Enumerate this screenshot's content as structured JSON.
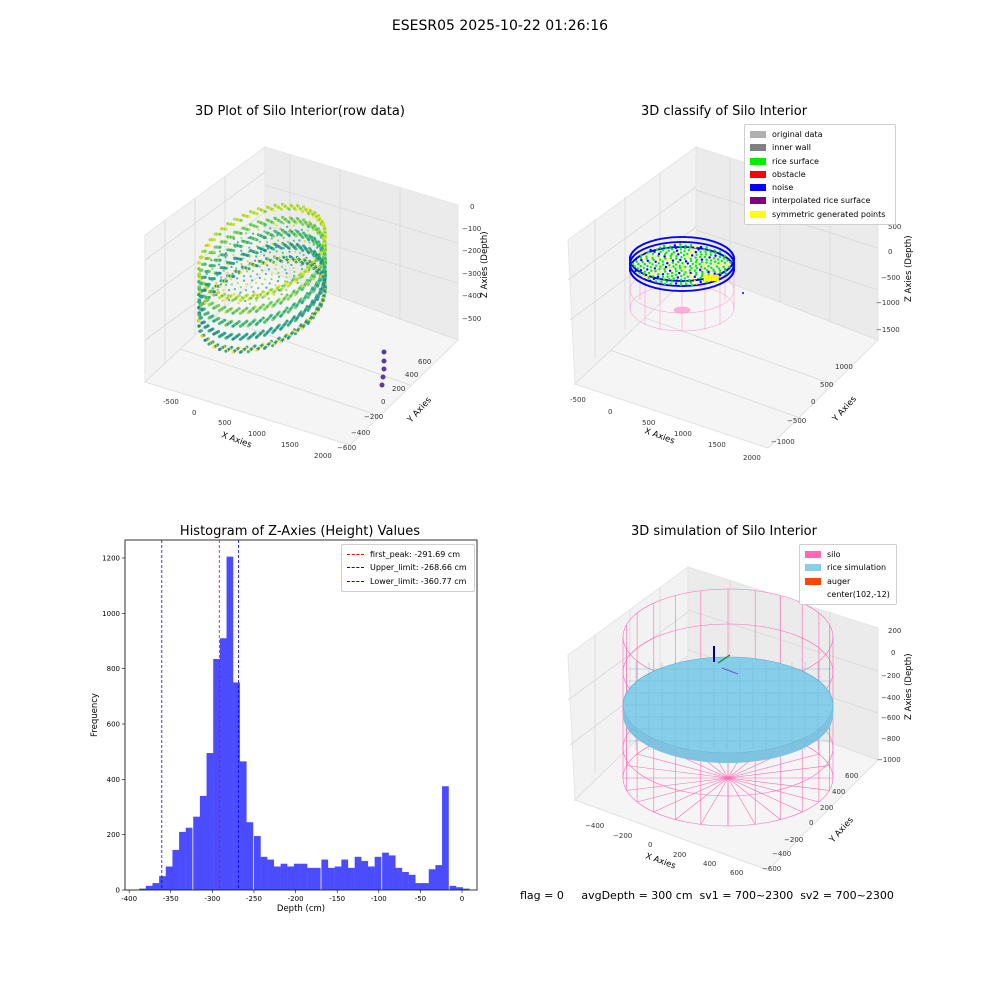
{
  "suptitle": "ESESR05 2025-10-22 01:26:16",
  "panels": {
    "raw": {
      "title": "3D Plot of Silo Interior(row data)",
      "xlabel": "X Axies",
      "ylabel": "Y Axies",
      "zlabel": "Z Axies (Depth)",
      "xticks": [
        "-500",
        "0",
        "500",
        "1000",
        "1500",
        "2000"
      ],
      "yticks": [
        "600",
        "400",
        "200",
        "0",
        "−200",
        "−400",
        "−600"
      ],
      "zticks": [
        "0",
        "−100",
        "−200",
        "−300",
        "−400",
        "−500"
      ]
    },
    "classify": {
      "title": "3D classify of Silo Interior",
      "xlabel": "X Axies",
      "ylabel": "Y Axies",
      "zlabel": "Z Axies (Depth)",
      "xticks": [
        "-500",
        "0",
        "500",
        "1000",
        "1500",
        "2000"
      ],
      "yticks": [
        "1000",
        "500",
        "0",
        "−500",
        "−1000"
      ],
      "zticks": [
        "500",
        "0",
        "−500",
        "−1000",
        "−1500"
      ],
      "legend": [
        {
          "label": "original data",
          "color": "#b0b0b0"
        },
        {
          "label": "inner wall",
          "color": "#808080"
        },
        {
          "label": "rice surface",
          "color": "#00ee00"
        },
        {
          "label": "obstacle",
          "color": "#ff0000"
        },
        {
          "label": "noise",
          "color": "#0000ff"
        },
        {
          "label": "interpolated rice surface",
          "color": "#800080"
        },
        {
          "label": "symmetric generated points",
          "color": "#ffff00"
        }
      ]
    },
    "sim": {
      "title": "3D simulation of Silo Interior",
      "xlabel": "X Axies",
      "ylabel": "Y Axies",
      "zlabel": "Z Axies (Depth)",
      "xticks": [
        "−400",
        "−200",
        "0",
        "200",
        "400",
        "600"
      ],
      "yticks": [
        "600",
        "400",
        "200",
        "0",
        "−200",
        "−400",
        "−600"
      ],
      "zticks": [
        "200",
        "0",
        "−200",
        "−400",
        "−600",
        "−800",
        "−1000"
      ],
      "legend": [
        {
          "label": "silo",
          "color": "#ff69b4"
        },
        {
          "label": "rice simulation",
          "color": "#87ceeb"
        },
        {
          "label": "auger",
          "color": "#ff4500"
        },
        {
          "label": "center(102,-12)",
          "color": ""
        }
      ]
    }
  },
  "flags_text": "flag = 0     avgDepth = 300 cm  sv1 = 700~2300  sv2 = 700~2300",
  "chart_data": {
    "type": "bar",
    "title": "Histogram of Z-Axies (Height) Values",
    "xlabel": "Depth (cm)",
    "ylabel": "Frequency",
    "xlim": [
      -405,
      18
    ],
    "ylim": [
      0,
      1265
    ],
    "xticks": [
      -400,
      -350,
      -300,
      -250,
      -200,
      -150,
      -100,
      -50,
      0
    ],
    "yticks": [
      0,
      200,
      400,
      600,
      800,
      1000,
      1200
    ],
    "bar_color": "#0000ff",
    "bin_width": 8.1,
    "bins": [
      {
        "x": -388,
        "v": 5
      },
      {
        "x": -380,
        "v": 15
      },
      {
        "x": -372,
        "v": 25
      },
      {
        "x": -364,
        "v": 50
      },
      {
        "x": -356,
        "v": 85
      },
      {
        "x": -348,
        "v": 145
      },
      {
        "x": -340,
        "v": 210
      },
      {
        "x": -332,
        "v": 225
      },
      {
        "x": -323,
        "v": 265
      },
      {
        "x": -315,
        "v": 340
      },
      {
        "x": -307,
        "v": 495
      },
      {
        "x": -299,
        "v": 835
      },
      {
        "x": -291,
        "v": 910
      },
      {
        "x": -283,
        "v": 1205
      },
      {
        "x": -275,
        "v": 750
      },
      {
        "x": -267,
        "v": 465
      },
      {
        "x": -259,
        "v": 245
      },
      {
        "x": -250,
        "v": 195
      },
      {
        "x": -242,
        "v": 120
      },
      {
        "x": -234,
        "v": 110
      },
      {
        "x": -226,
        "v": 85
      },
      {
        "x": -218,
        "v": 95
      },
      {
        "x": -210,
        "v": 85
      },
      {
        "x": -202,
        "v": 95
      },
      {
        "x": -194,
        "v": 95
      },
      {
        "x": -186,
        "v": 80
      },
      {
        "x": -178,
        "v": 80
      },
      {
        "x": -169,
        "v": 110
      },
      {
        "x": -161,
        "v": 80
      },
      {
        "x": -153,
        "v": 85
      },
      {
        "x": -145,
        "v": 110
      },
      {
        "x": -137,
        "v": 80
      },
      {
        "x": -129,
        "v": 120
      },
      {
        "x": -121,
        "v": 105
      },
      {
        "x": -113,
        "v": 85
      },
      {
        "x": -105,
        "v": 120
      },
      {
        "x": -96,
        "v": 135
      },
      {
        "x": -88,
        "v": 125
      },
      {
        "x": -80,
        "v": 80
      },
      {
        "x": -72,
        "v": 65
      },
      {
        "x": -64,
        "v": 55
      },
      {
        "x": -56,
        "v": 25
      },
      {
        "x": -48,
        "v": 25
      },
      {
        "x": -40,
        "v": 75
      },
      {
        "x": -32,
        "v": 90
      },
      {
        "x": -24,
        "v": 375
      },
      {
        "x": -15,
        "v": 15
      },
      {
        "x": -7,
        "v": 10
      },
      {
        "x": 1,
        "v": 5
      }
    ],
    "vlines": [
      {
        "x": -291.69,
        "color": "#ff0000",
        "label": "first_peak: -291.69 cm"
      },
      {
        "x": -268.66,
        "color": "#0000ff",
        "label": "Upper_limit: -268.66 cm"
      },
      {
        "x": -360.77,
        "color": "#0000ff",
        "label": "Lower_limit: -360.77 cm"
      }
    ]
  }
}
